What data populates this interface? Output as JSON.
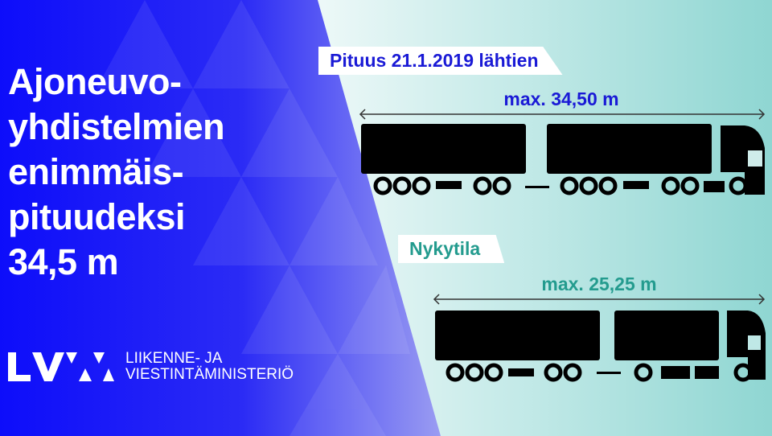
{
  "headline": [
    "Ajoneuvo-",
    "yhdistelmien",
    "enimmäis-",
    "pituudeksi",
    "34,5 m"
  ],
  "logo": {
    "mark": "LVM",
    "ministry_line1": "LIIKENNE- JA",
    "ministry_line2": "VIESTINTÄMINISTERIÖ"
  },
  "new_combo": {
    "label": "Pituus 21.1.2019 lähtien",
    "length": "max. 34,50 m"
  },
  "current_combo": {
    "label": "Nykytila",
    "length": "max. 25,25 m"
  },
  "colors": {
    "blue": "#1a1ad6",
    "teal": "#239b8e",
    "truck": "#000000"
  }
}
